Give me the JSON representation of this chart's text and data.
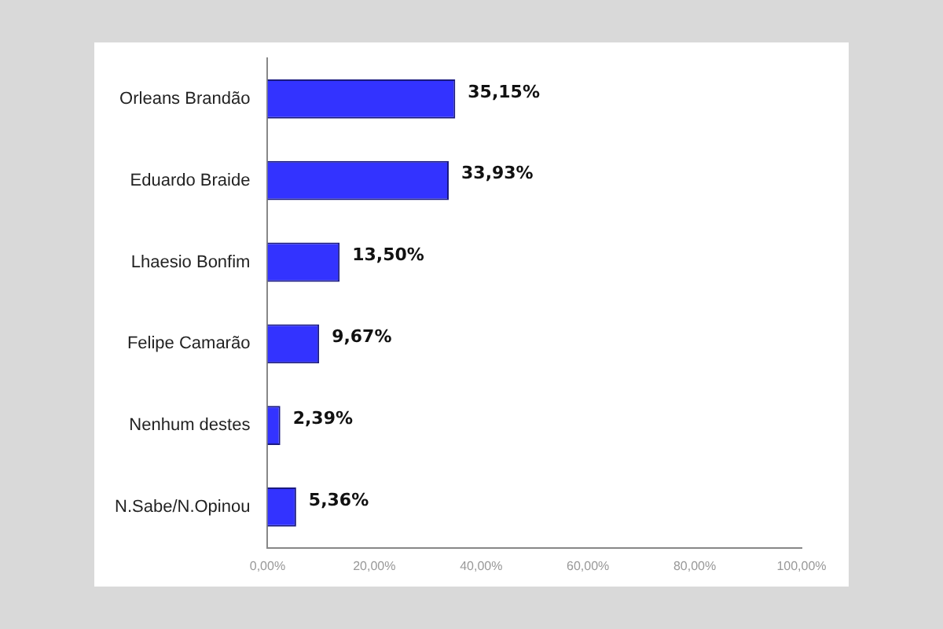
{
  "chart_data": {
    "type": "bar",
    "orientation": "horizontal",
    "categories": [
      "Orleans Brandão",
      "Eduardo Braide",
      "Lhaesio Bonfim",
      "Felipe Camarão",
      "Nenhum destes",
      "N.Sabe/N.Opinou"
    ],
    "values": [
      35.15,
      33.93,
      13.5,
      9.67,
      2.39,
      5.36
    ],
    "value_labels": [
      "35,15%",
      "33,93%",
      "13,50%",
      "9,67%",
      "2,39%",
      "5,36%"
    ],
    "color": "#3333ff",
    "xlim": [
      0,
      100
    ],
    "xticks": [
      {
        "value": 0,
        "label": "0,00%"
      },
      {
        "value": 20,
        "label": "20,00%"
      },
      {
        "value": 40,
        "label": "40,00%"
      },
      {
        "value": 60,
        "label": "60,00%"
      },
      {
        "value": 80,
        "label": "80,00%"
      },
      {
        "value": 100,
        "label": "100,00%"
      }
    ],
    "grid": false,
    "legend": false
  }
}
